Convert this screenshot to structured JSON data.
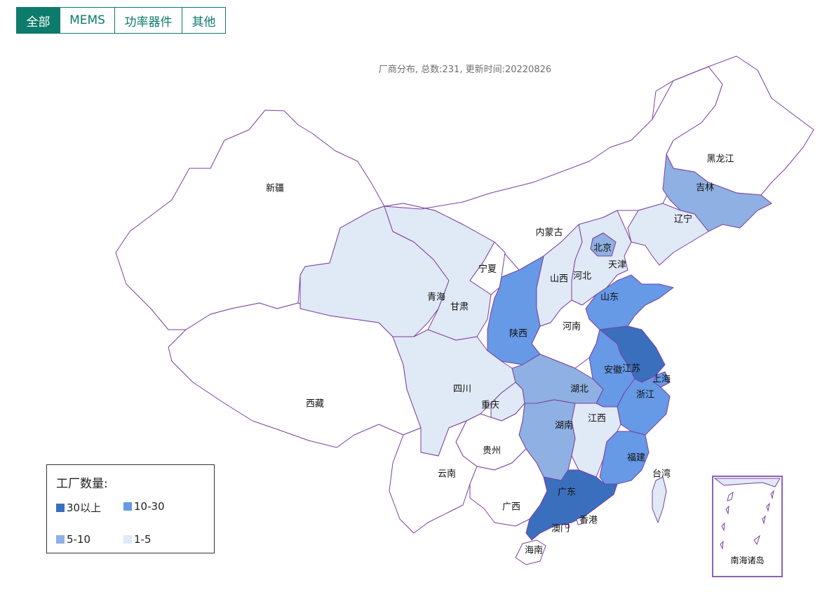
{
  "tabs": [
    {
      "label": "全部",
      "active": true
    },
    {
      "label": "MEMS",
      "active": false
    },
    {
      "label": "功率器件",
      "active": false
    },
    {
      "label": "其他",
      "active": false
    }
  ],
  "subtitle": "厂商分布, 总数:231, 更新时间:20220826",
  "colors": {
    "border": "#7b3fa0",
    "level_30_plus": "#3a6fbe",
    "level_10_30": "#6699e6",
    "level_5_10": "#8fb0e2",
    "level_1_5": "#e0e9f6",
    "level_none": "#ffffff",
    "tab_accent": "#0d7b6b"
  },
  "legend": {
    "title": "工厂数量:",
    "items": [
      {
        "label": "30以上",
        "level": "level_30_plus"
      },
      {
        "label": "10-30",
        "level": "level_10_30"
      },
      {
        "label": "5-10",
        "level": "level_5_10"
      },
      {
        "label": "1-5",
        "level": "level_1_5"
      }
    ]
  },
  "provinces": [
    {
      "name": "新疆",
      "level": "level_none"
    },
    {
      "name": "西藏",
      "level": "level_none"
    },
    {
      "name": "内蒙古",
      "level": "level_none"
    },
    {
      "name": "黑龙江",
      "level": "level_none"
    },
    {
      "name": "吉林",
      "level": "level_5_10"
    },
    {
      "name": "辽宁",
      "level": "level_1_5"
    },
    {
      "name": "北京",
      "level": "level_5_10"
    },
    {
      "name": "天津",
      "level": "level_1_5"
    },
    {
      "name": "河北",
      "level": "level_1_5"
    },
    {
      "name": "山西",
      "level": "level_1_5"
    },
    {
      "name": "山东",
      "level": "level_10_30"
    },
    {
      "name": "河南",
      "level": "level_none"
    },
    {
      "name": "青海",
      "level": "level_1_5"
    },
    {
      "name": "甘肃",
      "level": "level_1_5"
    },
    {
      "name": "宁夏",
      "level": "level_none"
    },
    {
      "name": "陕西",
      "level": "level_10_30"
    },
    {
      "name": "四川",
      "level": "level_1_5"
    },
    {
      "name": "重庆",
      "level": "level_1_5"
    },
    {
      "name": "湖北",
      "level": "level_5_10"
    },
    {
      "name": "安徽",
      "level": "level_10_30"
    },
    {
      "name": "江苏",
      "level": "level_30_plus"
    },
    {
      "name": "上海",
      "level": "level_10_30"
    },
    {
      "name": "浙江",
      "level": "level_10_30"
    },
    {
      "name": "湖南",
      "level": "level_5_10"
    },
    {
      "name": "江西",
      "level": "level_1_5"
    },
    {
      "name": "福建",
      "level": "level_10_30"
    },
    {
      "name": "台湾",
      "level": "level_1_5"
    },
    {
      "name": "贵州",
      "level": "level_none"
    },
    {
      "name": "云南",
      "level": "level_none"
    },
    {
      "name": "广西",
      "level": "level_none"
    },
    {
      "name": "广东",
      "level": "level_30_plus"
    },
    {
      "name": "香港",
      "level": "level_none"
    },
    {
      "name": "澳门",
      "level": "level_none"
    },
    {
      "name": "海南",
      "level": "level_none"
    }
  ],
  "inset": {
    "label": "南海诸岛"
  }
}
